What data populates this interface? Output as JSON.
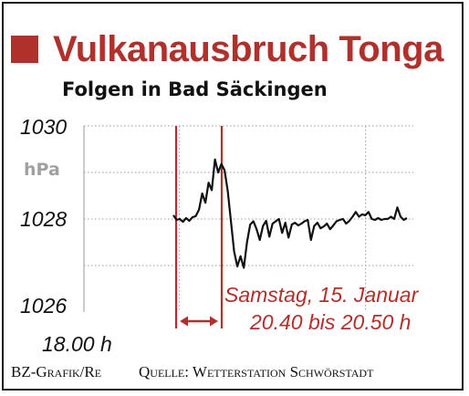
{
  "header": {
    "title": "Vulkanausbruch Tonga",
    "subtitle": "Folgen in Bad Säckingen"
  },
  "footer": {
    "credit": "BZ-Grafik/Re",
    "source": "Quelle: Wetterstation Schwörstadt"
  },
  "colors": {
    "accent": "#b0312c",
    "line": "#111111",
    "grid": "#9a9a9a"
  },
  "chart_data": {
    "type": "line",
    "title": "Vulkanausbruch Tonga",
    "subtitle": "Folgen in Bad Säckingen",
    "xlabel": "",
    "ylabel": "hPa",
    "y_unit": "hPa",
    "ylim": [
      1026,
      1030
    ],
    "yticks": [
      "1030",
      "1028",
      "1026"
    ],
    "x_start_label": "18.00 h",
    "grid": true,
    "annotation": {
      "line1": "Samstag, 15. Januar",
      "line2": "20.40 bis 20.50 h"
    },
    "series": [
      {
        "values": [
          1028.08,
          1027.98,
          1028.0,
          1027.94,
          1028.02,
          1027.96,
          1028.04,
          1028.06,
          1028.2,
          1028.55,
          1028.35,
          1028.78,
          1028.62,
          1029.28,
          1029.0,
          1029.18,
          1029.05,
          1028.6,
          1027.95,
          1027.3,
          1026.98,
          1027.2,
          1026.95,
          1027.5,
          1027.88,
          1027.95,
          1027.78,
          1027.55,
          1027.85,
          1027.96,
          1027.62,
          1027.9,
          1027.95,
          1028.0,
          1027.7,
          1027.92,
          1027.6,
          1027.88,
          1027.92,
          1027.86,
          1027.9,
          1027.95,
          1027.98,
          1027.55,
          1027.85,
          1027.92,
          1027.8,
          1027.84,
          1027.9,
          1027.78,
          1027.86,
          1027.95,
          1027.98,
          1028.0,
          1027.9,
          1027.96,
          1028.05,
          1028.15,
          1028.05,
          1028.1,
          1028.08,
          1028.15,
          1028.0,
          1027.98,
          1028.02,
          1027.98,
          1028.0,
          1028.0,
          1028.05,
          1028.0,
          1028.25,
          1028.05,
          1027.98,
          1028.02
        ]
      }
    ]
  }
}
